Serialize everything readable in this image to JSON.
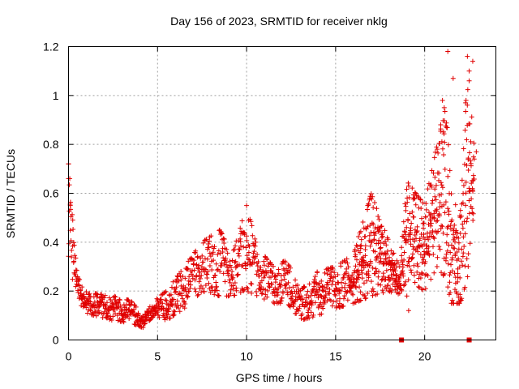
{
  "chart_data": {
    "type": "scatter",
    "title": "Day 156 of 2023, SRMTID for receiver nklg",
    "xlabel": "GPS time / hours",
    "ylabel": "SRMTID / TECUs",
    "xlim": [
      0,
      24
    ],
    "ylim": [
      0,
      1.2
    ],
    "x_ticks": [
      0,
      5,
      10,
      15,
      20
    ],
    "x_tick_labels": [
      "0",
      "5",
      "10",
      "15",
      "20"
    ],
    "y_ticks": [
      0,
      0.2,
      0.4,
      0.6,
      0.8,
      1.0,
      1.2
    ],
    "y_tick_labels": [
      "0",
      "0.2",
      "0.4",
      "0.6",
      "0.8",
      "1",
      "1.2"
    ],
    "grid": true,
    "marker": "plus",
    "series": [
      {
        "name": "SRMTID",
        "color": "#e00000",
        "envelope": [
          {
            "x": 0.0,
            "low": 0.3,
            "high": 0.72
          },
          {
            "x": 0.2,
            "low": 0.25,
            "high": 0.52
          },
          {
            "x": 0.5,
            "low": 0.2,
            "high": 0.3
          },
          {
            "x": 0.8,
            "low": 0.11,
            "high": 0.2
          },
          {
            "x": 1.5,
            "low": 0.1,
            "high": 0.19
          },
          {
            "x": 2.5,
            "low": 0.08,
            "high": 0.18
          },
          {
            "x": 3.5,
            "low": 0.07,
            "high": 0.16
          },
          {
            "x": 4.2,
            "low": 0.05,
            "high": 0.1
          },
          {
            "x": 4.8,
            "low": 0.1,
            "high": 0.16
          },
          {
            "x": 5.5,
            "low": 0.08,
            "high": 0.2
          },
          {
            "x": 6.5,
            "low": 0.13,
            "high": 0.3
          },
          {
            "x": 7.5,
            "low": 0.2,
            "high": 0.4
          },
          {
            "x": 8.5,
            "low": 0.18,
            "high": 0.45
          },
          {
            "x": 9.2,
            "low": 0.18,
            "high": 0.35
          },
          {
            "x": 10.0,
            "low": 0.2,
            "high": 0.55
          },
          {
            "x": 10.6,
            "low": 0.18,
            "high": 0.38
          },
          {
            "x": 11.5,
            "low": 0.15,
            "high": 0.3
          },
          {
            "x": 12.3,
            "low": 0.15,
            "high": 0.33
          },
          {
            "x": 13.0,
            "low": 0.08,
            "high": 0.2
          },
          {
            "x": 14.0,
            "low": 0.1,
            "high": 0.28
          },
          {
            "x": 15.0,
            "low": 0.13,
            "high": 0.3
          },
          {
            "x": 16.0,
            "low": 0.15,
            "high": 0.35
          },
          {
            "x": 17.0,
            "low": 0.18,
            "high": 0.6
          },
          {
            "x": 18.0,
            "low": 0.2,
            "high": 0.4
          },
          {
            "x": 18.6,
            "low": 0.18,
            "high": 0.3
          },
          {
            "x": 19.0,
            "low": 0.25,
            "high": 0.65
          },
          {
            "x": 20.0,
            "low": 0.2,
            "high": 0.55
          },
          {
            "x": 20.7,
            "low": 0.3,
            "high": 0.8
          },
          {
            "x": 21.2,
            "low": 0.25,
            "high": 0.95
          },
          {
            "x": 21.5,
            "low": 0.15,
            "high": 0.6
          },
          {
            "x": 22.0,
            "low": 0.15,
            "high": 0.5
          },
          {
            "x": 22.4,
            "low": 0.25,
            "high": 1.1
          },
          {
            "x": 22.8,
            "low": 0.5,
            "high": 0.8
          }
        ],
        "highlights": [
          {
            "x": 21.3,
            "y": 1.18
          },
          {
            "x": 22.4,
            "y": 1.16
          },
          {
            "x": 22.7,
            "y": 1.14
          },
          {
            "x": 22.5,
            "y": 1.1
          },
          {
            "x": 21.6,
            "y": 1.07
          },
          {
            "x": 22.5,
            "y": 1.06
          },
          {
            "x": 21.0,
            "y": 0.98
          },
          {
            "x": 22.3,
            "y": 0.97
          },
          {
            "x": 21.1,
            "y": 0.95
          },
          {
            "x": 20.9,
            "y": 0.88
          },
          {
            "x": 22.9,
            "y": 0.77
          },
          {
            "x": 10.0,
            "y": 0.55
          },
          {
            "x": 0.0,
            "y": 0.72
          },
          {
            "x": 0.0,
            "y": 0.66
          },
          {
            "x": 0.1,
            "y": 0.55
          },
          {
            "x": 19.0,
            "y": 0.18
          },
          {
            "x": 19.1,
            "y": 0.12
          },
          {
            "x": 21.8,
            "y": 0.15
          },
          {
            "x": 22.0,
            "y": 0.16
          }
        ],
        "zero_points": [
          {
            "x": 18.7,
            "y": 0
          },
          {
            "x": 22.5,
            "y": 0
          }
        ]
      }
    ]
  }
}
